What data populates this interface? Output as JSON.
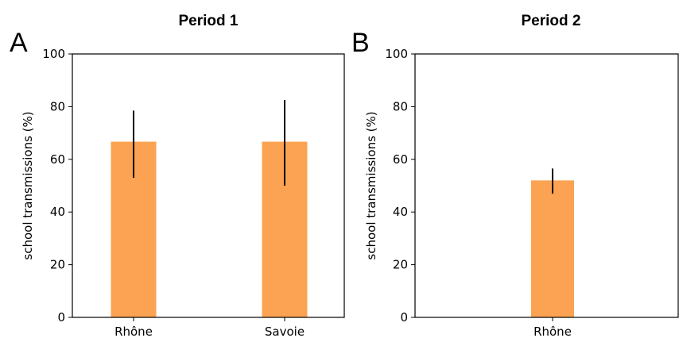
{
  "chart_data": [
    {
      "type": "bar",
      "panel_label": "A",
      "title": "Period 1",
      "xlabel": "",
      "ylabel": "school transmissions (%)",
      "ylim": [
        0,
        100
      ],
      "yticks": [
        0,
        20,
        40,
        60,
        80,
        100
      ],
      "categories": [
        "Rhône",
        "Savoie"
      ],
      "values": [
        66.7,
        66.7
      ],
      "error_low": [
        53,
        50
      ],
      "error_high": [
        78.5,
        82.5
      ],
      "bar_color": "#fba352",
      "error_color": "#000000",
      "grid": false
    },
    {
      "type": "bar",
      "panel_label": "B",
      "title": "Period 2",
      "xlabel": "",
      "ylabel": "school transmissions (%)",
      "ylim": [
        0,
        100
      ],
      "yticks": [
        0,
        20,
        40,
        60,
        80,
        100
      ],
      "categories": [
        "Rhône"
      ],
      "values": [
        52
      ],
      "error_low": [
        47
      ],
      "error_high": [
        56.5
      ],
      "bar_color": "#fba352",
      "error_color": "#000000",
      "grid": false
    }
  ]
}
